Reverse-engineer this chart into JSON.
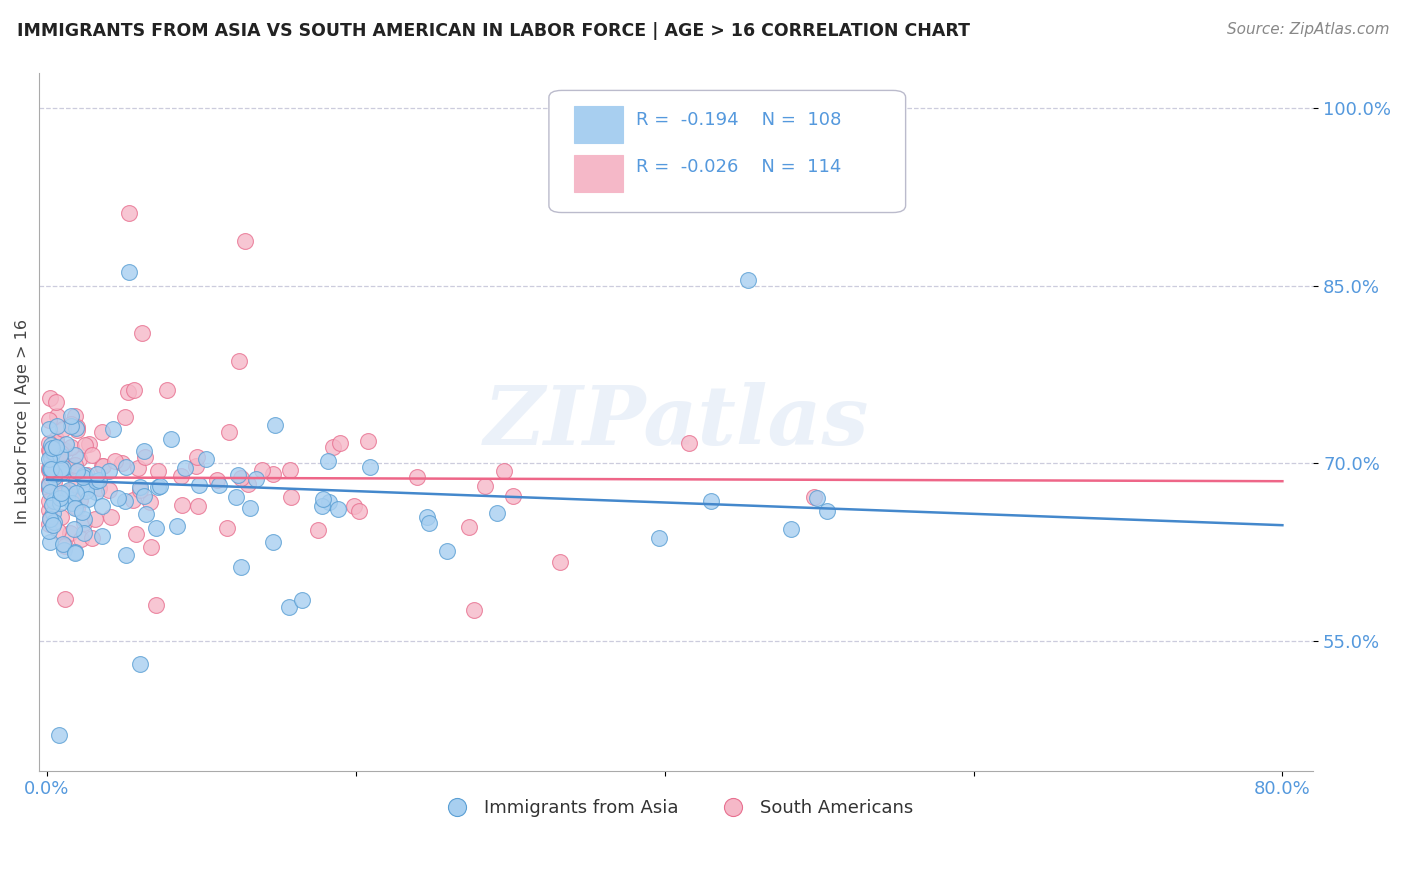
{
  "title": "IMMIGRANTS FROM ASIA VS SOUTH AMERICAN IN LABOR FORCE | AGE > 16 CORRELATION CHART",
  "source": "Source: ZipAtlas.com",
  "ylabel": "In Labor Force | Age > 16",
  "ylim": [
    0.44,
    1.03
  ],
  "xlim": [
    -0.005,
    0.82
  ],
  "asia_R": -0.194,
  "asia_N": 108,
  "sa_R": -0.026,
  "sa_N": 114,
  "asia_color": "#A8CFF0",
  "sa_color": "#F5B8C8",
  "asia_edge_color": "#5A9FD4",
  "sa_edge_color": "#E87090",
  "asia_line_color": "#4488CC",
  "sa_line_color": "#EE6688",
  "watermark": "ZIPatlas",
  "legend_asia": "Immigrants from Asia",
  "legend_sa": "South Americans",
  "title_color": "#222222",
  "source_color": "#888888",
  "tick_color": "#5599DD",
  "ylabel_color": "#444444",
  "grid_color": "#CCCCDD",
  "ytick_vals": [
    0.55,
    0.7,
    0.85,
    1.0
  ],
  "ytick_labels": [
    "55.0%",
    "70.0%",
    "85.0%",
    "100.0%"
  ],
  "xtick_vals": [
    0.0,
    0.2,
    0.4,
    0.6,
    0.8
  ],
  "xtick_labels": [
    "0.0%",
    "",
    "",
    "",
    "80.0%"
  ]
}
